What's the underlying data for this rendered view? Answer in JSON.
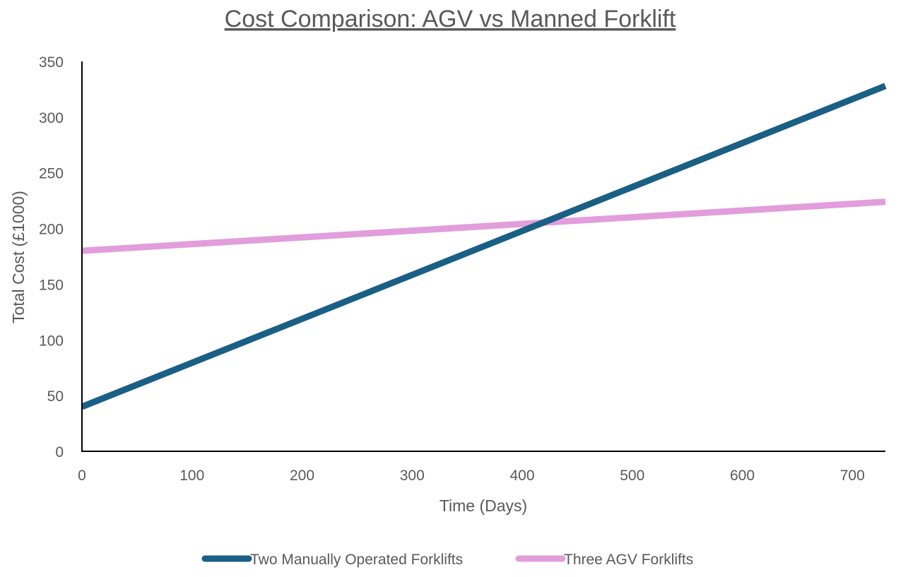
{
  "chart_data": {
    "type": "line",
    "title": "Cost Comparison: AGV vs Manned Forklift",
    "xlabel": "Time (Days)",
    "ylabel": "Total Cost (£1000)",
    "xlim": [
      0,
      730
    ],
    "ylim": [
      0,
      350
    ],
    "x_ticks": [
      0,
      100,
      200,
      300,
      400,
      500,
      600,
      700
    ],
    "y_ticks": [
      0,
      50,
      100,
      150,
      200,
      250,
      300,
      350
    ],
    "grid": false,
    "legend_position": "bottom",
    "series": [
      {
        "name": "Two Manually Operated Forklifts",
        "color": "#1a5f85",
        "x": [
          0,
          730
        ],
        "y": [
          40,
          328
        ]
      },
      {
        "name": "Three AGV Forklifts",
        "color": "#e29ddc",
        "x": [
          0,
          730
        ],
        "y": [
          180,
          224
        ]
      }
    ]
  }
}
